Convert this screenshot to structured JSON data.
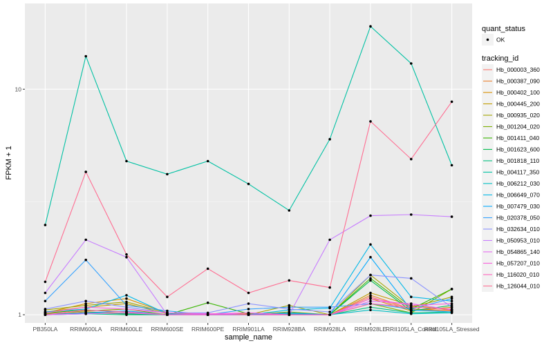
{
  "chart_data": {
    "type": "line",
    "xlabel": "sample_name",
    "ylabel": "FPKM + 1",
    "y_scale": "log10",
    "ylim": [
      0.92,
      24
    ],
    "y_ticks": [
      1,
      10
    ],
    "y_tick_labels": [
      "1",
      "10"
    ],
    "categories": [
      "PB350LA",
      "RRIM600LA",
      "RRIM600LE",
      "RRIM600SE",
      "RRIM600PE",
      "RRIM901LA",
      "RRIM928BA",
      "RRIM928LA",
      "RRIM928LE",
      "RRII105LA_Control",
      "RRII105LA_Stressed"
    ],
    "legend_status": {
      "title": "quant_status",
      "entries": [
        "OK"
      ]
    },
    "legend_tracking": {
      "title": "tracking_id"
    },
    "series": [
      {
        "name": "Hb_000003_360",
        "color": "#F8766D",
        "values": [
          1.01,
          1.02,
          1.01,
          1.0,
          1.0,
          1.01,
          1.02,
          1.0,
          1.2,
          1.05,
          1.05
        ]
      },
      {
        "name": "Hb_000387_090",
        "color": "#EA8331",
        "values": [
          1.0,
          1.03,
          1.02,
          1.0,
          1.01,
          1.0,
          1.01,
          1.0,
          1.22,
          1.06,
          1.04
        ]
      },
      {
        "name": "Hb_000402_100",
        "color": "#D89000",
        "values": [
          1.02,
          1.12,
          1.18,
          1.02,
          1.0,
          1.01,
          1.0,
          1.0,
          1.18,
          1.04,
          1.08
        ]
      },
      {
        "name": "Hb_000445_200",
        "color": "#C09B00",
        "values": [
          1.03,
          1.08,
          1.12,
          1.01,
          1.0,
          1.0,
          1.02,
          1.0,
          1.25,
          1.1,
          1.05
        ]
      },
      {
        "name": "Hb_000935_020",
        "color": "#A3A500",
        "values": [
          1.05,
          1.1,
          1.14,
          1.02,
          1.0,
          1.0,
          1.1,
          1.0,
          1.5,
          1.08,
          1.2
        ]
      },
      {
        "name": "Hb_001204_020",
        "color": "#7CAE00",
        "values": [
          1.01,
          1.04,
          1.06,
          1.0,
          1.0,
          1.0,
          1.03,
          1.0,
          1.12,
          1.02,
          1.3
        ]
      },
      {
        "name": "Hb_001411_040",
        "color": "#39B600",
        "values": [
          1.02,
          1.05,
          1.03,
          1.0,
          1.13,
          1.01,
          1.0,
          1.0,
          1.45,
          1.06,
          1.3
        ]
      },
      {
        "name": "Hb_001623_600",
        "color": "#00BB4E",
        "values": [
          1.0,
          1.02,
          1.01,
          1.0,
          1.0,
          1.0,
          1.0,
          1.0,
          1.42,
          1.04,
          1.1
        ]
      },
      {
        "name": "Hb_001818_110",
        "color": "#00BF7D",
        "values": [
          1.0,
          1.01,
          1.0,
          1.0,
          1.0,
          1.0,
          1.0,
          1.0,
          1.08,
          1.02,
          1.03
        ]
      },
      {
        "name": "Hb_004117_350",
        "color": "#00C1A3",
        "values": [
          2.5,
          14.0,
          4.8,
          4.2,
          4.8,
          3.8,
          2.9,
          6.0,
          19.0,
          13.0,
          4.6
        ]
      },
      {
        "name": "Hb_006212_030",
        "color": "#00BFC4",
        "values": [
          1.0,
          1.01,
          1.02,
          1.0,
          1.0,
          1.0,
          1.01,
          1.0,
          1.05,
          1.01,
          1.02
        ]
      },
      {
        "name": "Hb_006649_070",
        "color": "#00B8E7",
        "values": [
          1.03,
          1.06,
          1.22,
          1.01,
          1.0,
          1.0,
          1.05,
          1.07,
          2.05,
          1.2,
          1.15
        ]
      },
      {
        "name": "Hb_007479_030",
        "color": "#00A9FF",
        "values": [
          1.0,
          1.02,
          1.04,
          1.0,
          1.0,
          1.0,
          1.02,
          1.0,
          1.8,
          1.05,
          1.03
        ]
      },
      {
        "name": "Hb_020378_050",
        "color": "#35A2FF",
        "values": [
          1.15,
          1.75,
          1.1,
          1.04,
          1.0,
          1.06,
          1.08,
          1.08,
          1.12,
          1.06,
          1.18
        ]
      },
      {
        "name": "Hb_032634_010",
        "color": "#8B93FF",
        "values": [
          1.06,
          1.15,
          1.08,
          1.02,
          1.02,
          1.12,
          1.06,
          1.03,
          1.5,
          1.45,
          1.08
        ]
      },
      {
        "name": "Hb_050953_010",
        "color": "#C77CFF",
        "values": [
          1.25,
          2.15,
          1.8,
          1.0,
          1.01,
          1.0,
          1.0,
          2.15,
          2.75,
          2.78,
          2.72
        ]
      },
      {
        "name": "Hb_054865_140",
        "color": "#E76BF3",
        "values": [
          1.0,
          1.01,
          1.02,
          1.0,
          1.0,
          1.02,
          1.0,
          1.0,
          1.15,
          1.12,
          1.05
        ]
      },
      {
        "name": "Hb_057207_010",
        "color": "#FA62DB",
        "values": [
          1.02,
          1.08,
          1.06,
          1.02,
          1.01,
          1.02,
          1.0,
          1.0,
          1.18,
          1.1,
          1.12
        ]
      },
      {
        "name": "Hb_116020_010",
        "color": "#FF62BC",
        "values": [
          1.0,
          1.05,
          1.03,
          1.0,
          1.0,
          1.0,
          1.0,
          1.0,
          1.12,
          1.08,
          1.06
        ]
      },
      {
        "name": "Hb_126044_010",
        "color": "#FF6C91",
        "values": [
          1.4,
          4.3,
          1.85,
          1.2,
          1.6,
          1.25,
          1.42,
          1.32,
          7.2,
          4.9,
          8.8
        ]
      }
    ]
  }
}
